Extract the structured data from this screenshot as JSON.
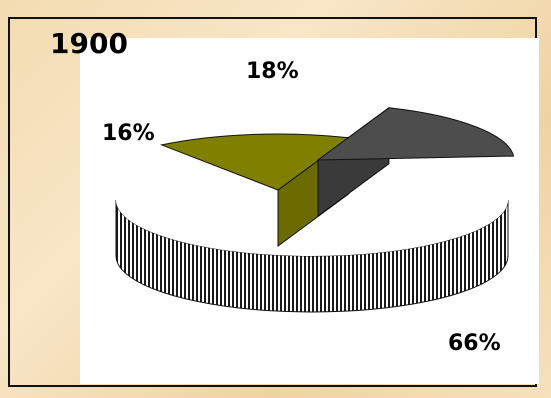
{
  "chart_data": {
    "type": "pie",
    "title": "1900",
    "slices": [
      {
        "label": "66%",
        "value": 66,
        "color": "#1a1a1a",
        "side_color": "#1a1a1a",
        "pattern": "vertical-stripes"
      },
      {
        "label": "16%",
        "value": 16,
        "color": "#808000",
        "side_color": "#6b6b00",
        "pattern": "solid"
      },
      {
        "label": "18%",
        "value": 18,
        "color": "#4d4d4d",
        "side_color": "#3a3a3a",
        "pattern": "solid"
      }
    ],
    "style": "3d-exploded"
  }
}
